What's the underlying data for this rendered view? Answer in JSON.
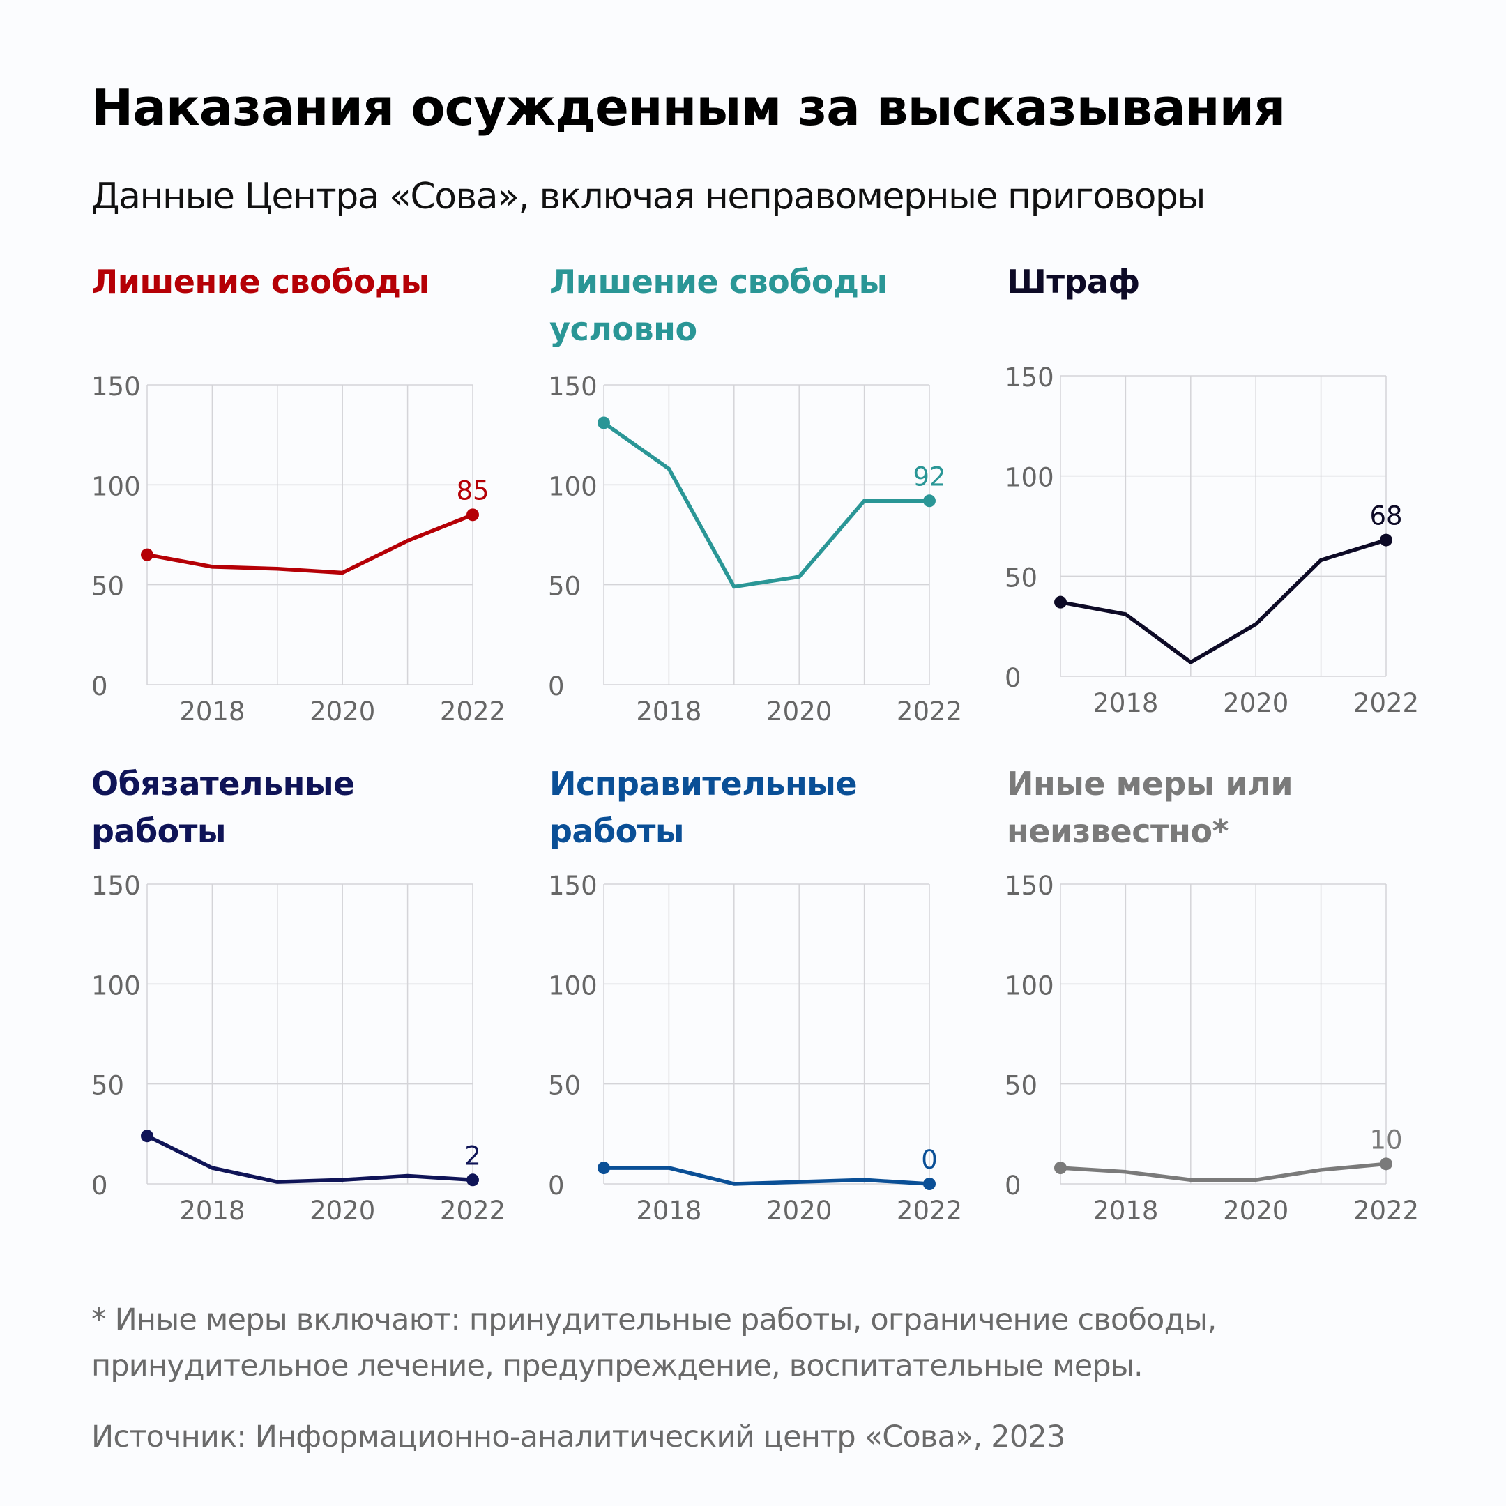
{
  "header": {
    "title": "Наказания осужденным за высказывания",
    "subtitle": "Данные Центра «Сова», включая неправомерные приговоры"
  },
  "footer": {
    "footnote_line1": "* Иные меры включают: принудительные работы, ограничение свободы,",
    "footnote_line2": "принудительное лечение, предупреждение, воспитательные меры.",
    "source": "Источник: Информационно-аналитический центр «Сова», 2023"
  },
  "chart_data": [
    {
      "type": "line",
      "title_lines": [
        "Лишение свободы"
      ],
      "color": "#b50006",
      "x": [
        2017,
        2018,
        2019,
        2020,
        2021,
        2022
      ],
      "values": [
        65,
        59,
        58,
        56,
        72,
        85
      ],
      "last_label": "85",
      "ylim": [
        0,
        150
      ],
      "yticks": [
        "0",
        "50",
        "100",
        "150"
      ],
      "xticks": [
        "2018",
        "2020",
        "2022"
      ],
      "grid": true
    },
    {
      "type": "line",
      "title_lines": [
        "Лишение свободы",
        "условно"
      ],
      "color": "#2a9696",
      "x": [
        2017,
        2018,
        2019,
        2020,
        2021,
        2022
      ],
      "values": [
        131,
        108,
        49,
        54,
        92,
        92
      ],
      "last_label": "92",
      "ylim": [
        0,
        150
      ],
      "yticks": [
        "0",
        "50",
        "100",
        "150"
      ],
      "xticks": [
        "2018",
        "2020",
        "2022"
      ],
      "grid": true
    },
    {
      "type": "line",
      "title_lines": [
        "Штраф"
      ],
      "color": "#0d0a26",
      "x": [
        2017,
        2018,
        2019,
        2020,
        2021,
        2022
      ],
      "values": [
        37,
        31,
        7,
        26,
        58,
        68
      ],
      "last_label": "68",
      "ylim": [
        0,
        150
      ],
      "yticks": [
        "0",
        "50",
        "100",
        "150"
      ],
      "xticks": [
        "2018",
        "2020",
        "2022"
      ],
      "grid": true
    },
    {
      "type": "line",
      "title_lines": [
        "Обязательные",
        "работы"
      ],
      "color": "#0f1457",
      "x": [
        2017,
        2018,
        2019,
        2020,
        2021,
        2022
      ],
      "values": [
        24,
        8,
        1,
        2,
        4,
        2
      ],
      "last_label": "2",
      "ylim": [
        0,
        150
      ],
      "yticks": [
        "0",
        "50",
        "100",
        "150"
      ],
      "xticks": [
        "2018",
        "2020",
        "2022"
      ],
      "grid": true
    },
    {
      "type": "line",
      "title_lines": [
        "Исправительные",
        "работы"
      ],
      "color": "#0a4f96",
      "x": [
        2017,
        2018,
        2019,
        2020,
        2021,
        2022
      ],
      "values": [
        8,
        8,
        0,
        1,
        2,
        0
      ],
      "last_label": "0",
      "ylim": [
        0,
        150
      ],
      "yticks": [
        "0",
        "50",
        "100",
        "150"
      ],
      "xticks": [
        "2018",
        "2020",
        "2022"
      ],
      "grid": true
    },
    {
      "type": "line",
      "title_lines": [
        "Иные меры или",
        "неизвестно*"
      ],
      "color": "#7a7a7a",
      "x": [
        2017,
        2018,
        2019,
        2020,
        2021,
        2022
      ],
      "values": [
        8,
        6,
        2,
        2,
        7,
        10
      ],
      "last_label": "10",
      "ylim": [
        0,
        150
      ],
      "yticks": [
        "0",
        "50",
        "100",
        "150"
      ],
      "xticks": [
        "2018",
        "2020",
        "2022"
      ],
      "grid": true
    }
  ]
}
